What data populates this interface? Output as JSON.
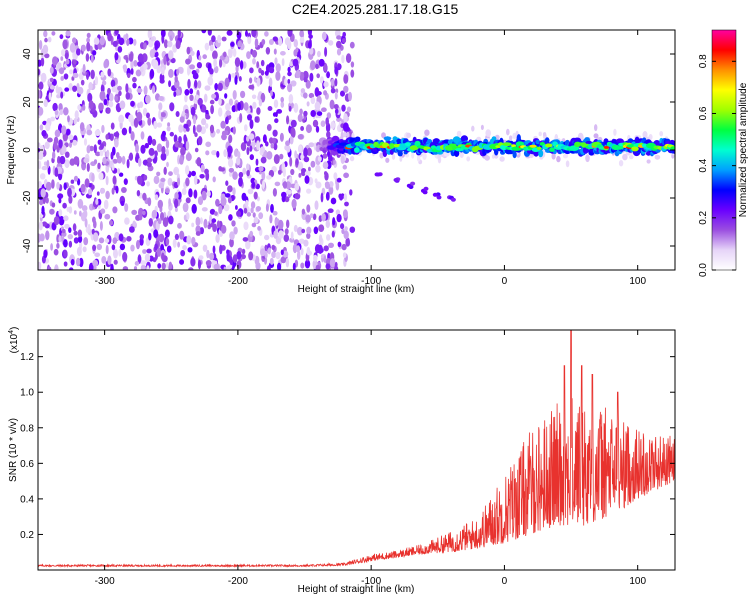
{
  "title": "C2E4.2025.281.17.18.G15",
  "chart_data": [
    {
      "type": "heatmap",
      "title": "C2E4.2025.281.17.18.G15",
      "xlabel": "Height of straight line (km)",
      "ylabel": "Frequency (Hz)",
      "xlim": [
        -350,
        128
      ],
      "ylim": [
        -50,
        50
      ],
      "xticks": [
        -300,
        -200,
        -100,
        0,
        100
      ],
      "yticks": [
        -40,
        -20,
        0,
        20,
        40
      ],
      "noise_region_x": [
        -350,
        -120
      ],
      "signal_band": {
        "x_start": -140,
        "x_end": 128,
        "center_hz": 1.5,
        "half_width_hz": 4
      },
      "weak_trace": {
        "x": [
          -95,
          -80,
          -70,
          -60,
          -50,
          -40
        ],
        "y": [
          -10,
          -13,
          -15,
          -17,
          -19,
          -20
        ]
      },
      "colorbar": {
        "label": "Normalized spectral amplitude",
        "range": [
          0.0,
          0.92
        ],
        "ticks": [
          0.0,
          0.2,
          0.4,
          0.6,
          0.8
        ],
        "tick_labels": [
          "0.0",
          "0.2",
          "0.4",
          "0.6",
          "0.8"
        ],
        "colors": [
          "#ffffff",
          "#e6d4f8",
          "#9b4fe0",
          "#6a00ff",
          "#0000ff",
          "#00a0ff",
          "#00ffd0",
          "#00ff40",
          "#a0ff00",
          "#ffff00",
          "#ff9000",
          "#ff0000",
          "#ff00a0"
        ]
      }
    },
    {
      "type": "line",
      "xlabel": "Height of straight line (km)",
      "ylabel": "SNR (10 * v/v)",
      "y_multiplier_label": "(x10",
      "y_multiplier_exp": "4",
      "y_multiplier_close": ")",
      "xlim": [
        -350,
        128
      ],
      "ylim": [
        0,
        13500
      ],
      "xticks": [
        -300,
        -200,
        -100,
        0,
        100
      ],
      "yticks": [
        2000,
        4000,
        6000,
        8000,
        10000,
        12000
      ],
      "ytick_labels": [
        "0.2",
        "0.4",
        "0.6",
        "0.8",
        "1.0",
        "1.2"
      ],
      "series": [
        {
          "name": "SNR",
          "color": "#e8322e",
          "envelope_x": [
            -350,
            -150,
            -120,
            -100,
            -80,
            -60,
            -40,
            -20,
            0,
            20,
            40,
            60,
            80,
            100,
            128
          ],
          "envelope_y": [
            300,
            300,
            400,
            900,
            1100,
            1500,
            2200,
            3000,
            5500,
            8000,
            9500,
            10000,
            9000,
            8000,
            7500
          ],
          "floor_y": [
            200,
            200,
            250,
            500,
            700,
            900,
            1000,
            1200,
            1500,
            2000,
            2500,
            2500,
            3000,
            4000,
            5000
          ],
          "peaks_x": [
            45,
            50,
            58,
            66,
            85
          ],
          "peaks_y": [
            11500,
            13500,
            11500,
            11000,
            10000
          ]
        }
      ]
    }
  ]
}
